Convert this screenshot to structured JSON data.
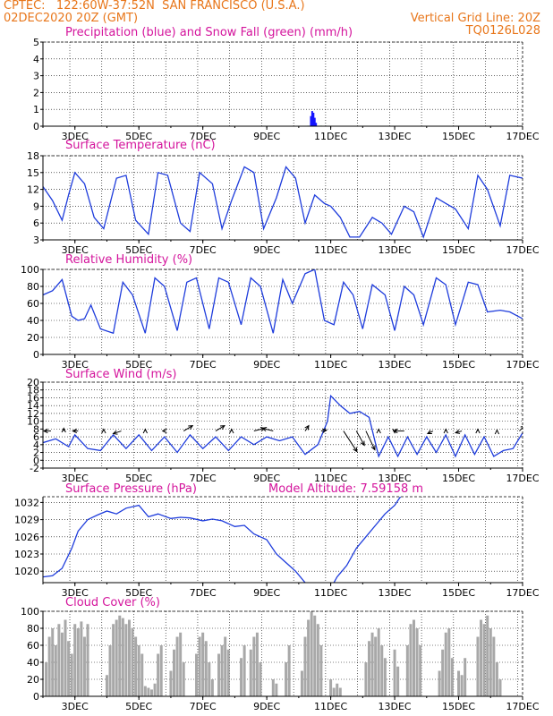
{
  "header": {
    "line1_left": "CPTEC:   122:60W-37:52N  SAN FRANCISCO (U.S.A.)",
    "line2_left": "02DEC2020 20Z (GMT)",
    "line2_right": "Vertical Grid Line: 20Z",
    "line3_right": "TQ0126L028"
  },
  "x_ticks": [
    "3DEC",
    "5DEC",
    "7DEC",
    "9DEC",
    "11DEC",
    "13DEC",
    "15DEC",
    "17DEC"
  ],
  "colors": {
    "header": "#e8761a",
    "title": "#d4149c",
    "precip": "#1515ff",
    "snow": "#10a010",
    "line": "#1e3cdc",
    "bars": "#a8a8a8",
    "arrows": "#000000"
  },
  "chart_data": [
    {
      "type": "bar",
      "title": "Precipitation (blue) and Snow Fall (green) (mm/h)",
      "ylim": [
        0,
        5
      ],
      "yticks": [
        0,
        1,
        2,
        3,
        4,
        5
      ],
      "series": [
        {
          "name": "Precipitation",
          "x": [
            10.38,
            10.42,
            10.46,
            10.5,
            10.54
          ],
          "values": [
            0.6,
            0.9,
            0.8,
            0.5,
            0.2
          ]
        },
        {
          "name": "Snow Fall",
          "x": [
            10.3,
            10.7,
            10.9
          ],
          "values": [
            0.03,
            0.03,
            0.02
          ]
        }
      ]
    },
    {
      "type": "line",
      "title": "Surface Temperature (nC)",
      "ylim": [
        3,
        18
      ],
      "yticks": [
        3,
        6,
        9,
        12,
        15,
        18
      ],
      "x": [
        2.0,
        2.3,
        2.6,
        2.8,
        3.0,
        3.3,
        3.6,
        3.9,
        4.3,
        4.6,
        4.9,
        5.3,
        5.6,
        5.9,
        6.3,
        6.6,
        6.9,
        7.3,
        7.6,
        7.9,
        8.3,
        8.6,
        8.9,
        9.3,
        9.6,
        9.9,
        10.2,
        10.5,
        10.8,
        11.0,
        11.3,
        11.6,
        11.9,
        12.3,
        12.6,
        12.9,
        13.3,
        13.6,
        13.9,
        14.3,
        14.6,
        14.9,
        15.3,
        15.6,
        15.9,
        16.3,
        16.6,
        17.0
      ],
      "values": [
        12.5,
        10.0,
        6.5,
        11.0,
        15.0,
        13.0,
        7.0,
        5.0,
        14.0,
        14.5,
        6.5,
        4.0,
        15.0,
        14.5,
        6.0,
        4.5,
        15.0,
        13.0,
        5.0,
        10.0,
        16.0,
        15.0,
        5.0,
        10.5,
        16.0,
        14.0,
        6.0,
        11.0,
        9.5,
        9.0,
        7.0,
        3.5,
        3.5,
        7.0,
        6.0,
        4.0,
        9.0,
        8.0,
        3.5,
        10.5,
        9.5,
        8.5,
        5.0,
        14.5,
        12.0,
        5.5,
        14.5,
        14.0
      ]
    },
    {
      "type": "line",
      "title": "Relative Humidity (%)",
      "ylim": [
        0,
        100
      ],
      "yticks": [
        0,
        20,
        40,
        60,
        80,
        100
      ],
      "x": [
        2.0,
        2.3,
        2.6,
        2.9,
        3.1,
        3.3,
        3.5,
        3.8,
        4.2,
        4.5,
        4.8,
        5.2,
        5.5,
        5.8,
        6.2,
        6.5,
        6.8,
        7.2,
        7.5,
        7.8,
        8.2,
        8.5,
        8.8,
        9.2,
        9.5,
        9.8,
        10.2,
        10.5,
        10.8,
        11.1,
        11.4,
        11.7,
        12.0,
        12.3,
        12.7,
        13.0,
        13.3,
        13.6,
        13.9,
        14.3,
        14.6,
        14.9,
        15.3,
        15.6,
        15.9,
        16.3,
        16.6,
        17.0
      ],
      "values": [
        70,
        75,
        88,
        45,
        40,
        42,
        58,
        30,
        25,
        85,
        70,
        25,
        90,
        80,
        28,
        85,
        90,
        30,
        90,
        85,
        35,
        90,
        80,
        25,
        88,
        60,
        95,
        100,
        40,
        35,
        85,
        70,
        30,
        82,
        70,
        28,
        80,
        70,
        35,
        90,
        82,
        35,
        85,
        82,
        50,
        52,
        50,
        42
      ]
    },
    {
      "type": "line",
      "title": "Surface Wind (m/s)",
      "ylim": [
        -2,
        20
      ],
      "yticks": [
        -2,
        0,
        2,
        4,
        6,
        8,
        10,
        12,
        14,
        16,
        18,
        20
      ],
      "x": [
        2.0,
        2.4,
        2.8,
        3.0,
        3.4,
        3.8,
        4.2,
        4.6,
        5.0,
        5.4,
        5.8,
        6.2,
        6.6,
        7.0,
        7.4,
        7.8,
        8.2,
        8.6,
        9.0,
        9.4,
        9.8,
        10.2,
        10.6,
        10.9,
        11.0,
        11.3,
        11.6,
        11.9,
        12.2,
        12.5,
        12.8,
        13.1,
        13.4,
        13.7,
        14.0,
        14.3,
        14.6,
        14.9,
        15.2,
        15.5,
        15.8,
        16.1,
        16.4,
        16.7,
        17.0
      ],
      "values": [
        4.5,
        5.5,
        3.5,
        6.5,
        3.0,
        2.5,
        6.5,
        3.0,
        6.5,
        2.5,
        6.0,
        2.0,
        6.5,
        3.0,
        6.0,
        2.5,
        6.0,
        4.0,
        6.0,
        5.0,
        6.0,
        1.5,
        4.0,
        10.0,
        16.5,
        14.0,
        12.0,
        12.5,
        11.0,
        1.0,
        6.0,
        1.0,
        6.0,
        1.5,
        6.0,
        2.0,
        6.5,
        1.0,
        6.5,
        1.5,
        6.0,
        1.0,
        2.5,
        3.0,
        7.0
      ]
    },
    {
      "type": "line",
      "title": "Surface Pressure (hPa)",
      "subtitle": "Model Altitude: 7.59158 m",
      "ylim": [
        1018,
        1033
      ],
      "yticks": [
        1020,
        1023,
        1026,
        1029,
        1032
      ],
      "x": [
        2.0,
        2.3,
        2.6,
        2.9,
        3.1,
        3.4,
        3.7,
        4.0,
        4.3,
        4.6,
        5.0,
        5.3,
        5.6,
        6.0,
        6.3,
        6.6,
        7.0,
        7.3,
        7.6,
        8.0,
        8.3,
        8.6,
        9.0,
        9.3,
        9.6,
        9.9,
        10.2,
        10.5,
        11.0,
        11.2,
        11.5,
        11.8,
        12.1,
        12.4,
        12.7,
        13.0,
        13.3
      ],
      "values": [
        1019,
        1019.2,
        1020.5,
        1024,
        1027,
        1029,
        1029.8,
        1030.5,
        1030,
        1031,
        1031.5,
        1029.5,
        1030,
        1029.2,
        1029.4,
        1029.3,
        1028.8,
        1029.1,
        1028.8,
        1027.8,
        1028,
        1026.5,
        1025.5,
        1023,
        1021.5,
        1020,
        1018,
        1017,
        1017,
        1019,
        1021,
        1024,
        1026,
        1028,
        1030,
        1031.5,
        1034
      ]
    },
    {
      "type": "bar",
      "title": "Cloud Cover (%)",
      "ylim": [
        0,
        100
      ],
      "yticks": [
        0,
        20,
        40,
        60,
        80,
        100
      ],
      "x": [
        2.1,
        2.2,
        2.3,
        2.4,
        2.5,
        2.6,
        2.7,
        2.8,
        2.9,
        3.0,
        3.1,
        3.2,
        3.3,
        3.4,
        4.0,
        4.1,
        4.2,
        4.3,
        4.4,
        4.5,
        4.6,
        4.7,
        4.8,
        4.9,
        5.0,
        5.1,
        5.2,
        5.3,
        5.4,
        5.5,
        5.6,
        5.7,
        6.0,
        6.1,
        6.2,
        6.3,
        6.4,
        6.8,
        6.9,
        7.0,
        7.1,
        7.2,
        7.3,
        7.5,
        7.6,
        7.7,
        7.8,
        8.2,
        8.3,
        8.5,
        8.6,
        8.7,
        8.8,
        9.2,
        9.3,
        9.6,
        9.7,
        10.1,
        10.2,
        10.3,
        10.4,
        10.5,
        10.6,
        10.7,
        11.0,
        11.1,
        11.2,
        11.3,
        12.1,
        12.2,
        12.3,
        12.4,
        12.5,
        12.6,
        12.7,
        13.0,
        13.1,
        13.4,
        13.5,
        13.6,
        13.7,
        13.8,
        14.4,
        14.5,
        14.6,
        14.7,
        14.8,
        15.0,
        15.1,
        15.2,
        15.6,
        15.7,
        15.8,
        15.9,
        16.0,
        16.1,
        16.2,
        16.3
      ],
      "values": [
        40,
        70,
        80,
        60,
        85,
        75,
        90,
        65,
        50,
        85,
        80,
        88,
        70,
        85,
        25,
        60,
        85,
        90,
        95,
        92,
        85,
        90,
        80,
        70,
        60,
        50,
        12,
        10,
        8,
        15,
        50,
        60,
        30,
        55,
        70,
        75,
        40,
        50,
        70,
        75,
        65,
        40,
        20,
        50,
        60,
        70,
        55,
        45,
        60,
        55,
        70,
        75,
        40,
        20,
        15,
        40,
        60,
        30,
        70,
        90,
        100,
        95,
        85,
        60,
        20,
        10,
        15,
        10,
        40,
        65,
        75,
        70,
        80,
        60,
        45,
        55,
        35,
        60,
        85,
        90,
        80,
        60,
        30,
        55,
        75,
        80,
        45,
        30,
        25,
        45,
        70,
        90,
        85,
        95,
        80,
        70,
        40,
        20
      ]
    }
  ],
  "wind_arrows": [
    {
      "x": 2.25,
      "u": -8,
      "v": 0
    },
    {
      "x": 2.65,
      "u": 0,
      "v": 3
    },
    {
      "x": 3.1,
      "u": -6,
      "v": 0
    },
    {
      "x": 3.9,
      "u": 0,
      "v": 2
    },
    {
      "x": 4.45,
      "u": -9,
      "v": -3
    },
    {
      "x": 5.2,
      "u": 0,
      "v": 2
    },
    {
      "x": 5.8,
      "u": -2,
      "v": 0
    },
    {
      "x": 6.4,
      "u": 10,
      "v": 6
    },
    {
      "x": 7.4,
      "u": 10,
      "v": 6
    },
    {
      "x": 7.9,
      "u": 0,
      "v": 2
    },
    {
      "x": 8.6,
      "u": 12,
      "v": 3
    },
    {
      "x": 9.2,
      "u": -12,
      "v": 3
    },
    {
      "x": 10.2,
      "u": 4,
      "v": 6
    },
    {
      "x": 10.7,
      "u": 6,
      "v": 1
    },
    {
      "x": 11.4,
      "u": 15,
      "v": -23
    },
    {
      "x": 11.8,
      "u": 9,
      "v": -16
    },
    {
      "x": 12.1,
      "u": 10,
      "v": -21
    },
    {
      "x": 12.5,
      "u": 0,
      "v": 2
    },
    {
      "x": 13.0,
      "u": 0,
      "v": -2
    },
    {
      "x": 13.3,
      "u": -12,
      "v": 0
    },
    {
      "x": 14.2,
      "u": -6,
      "v": -3
    },
    {
      "x": 14.6,
      "u": 0,
      "v": 2
    },
    {
      "x": 15.1,
      "u": -7,
      "v": -2
    },
    {
      "x": 15.6,
      "u": 0,
      "v": 2
    },
    {
      "x": 16.2,
      "u": 0,
      "v": 1
    },
    {
      "x": 16.9,
      "u": 6,
      "v": 6
    }
  ]
}
